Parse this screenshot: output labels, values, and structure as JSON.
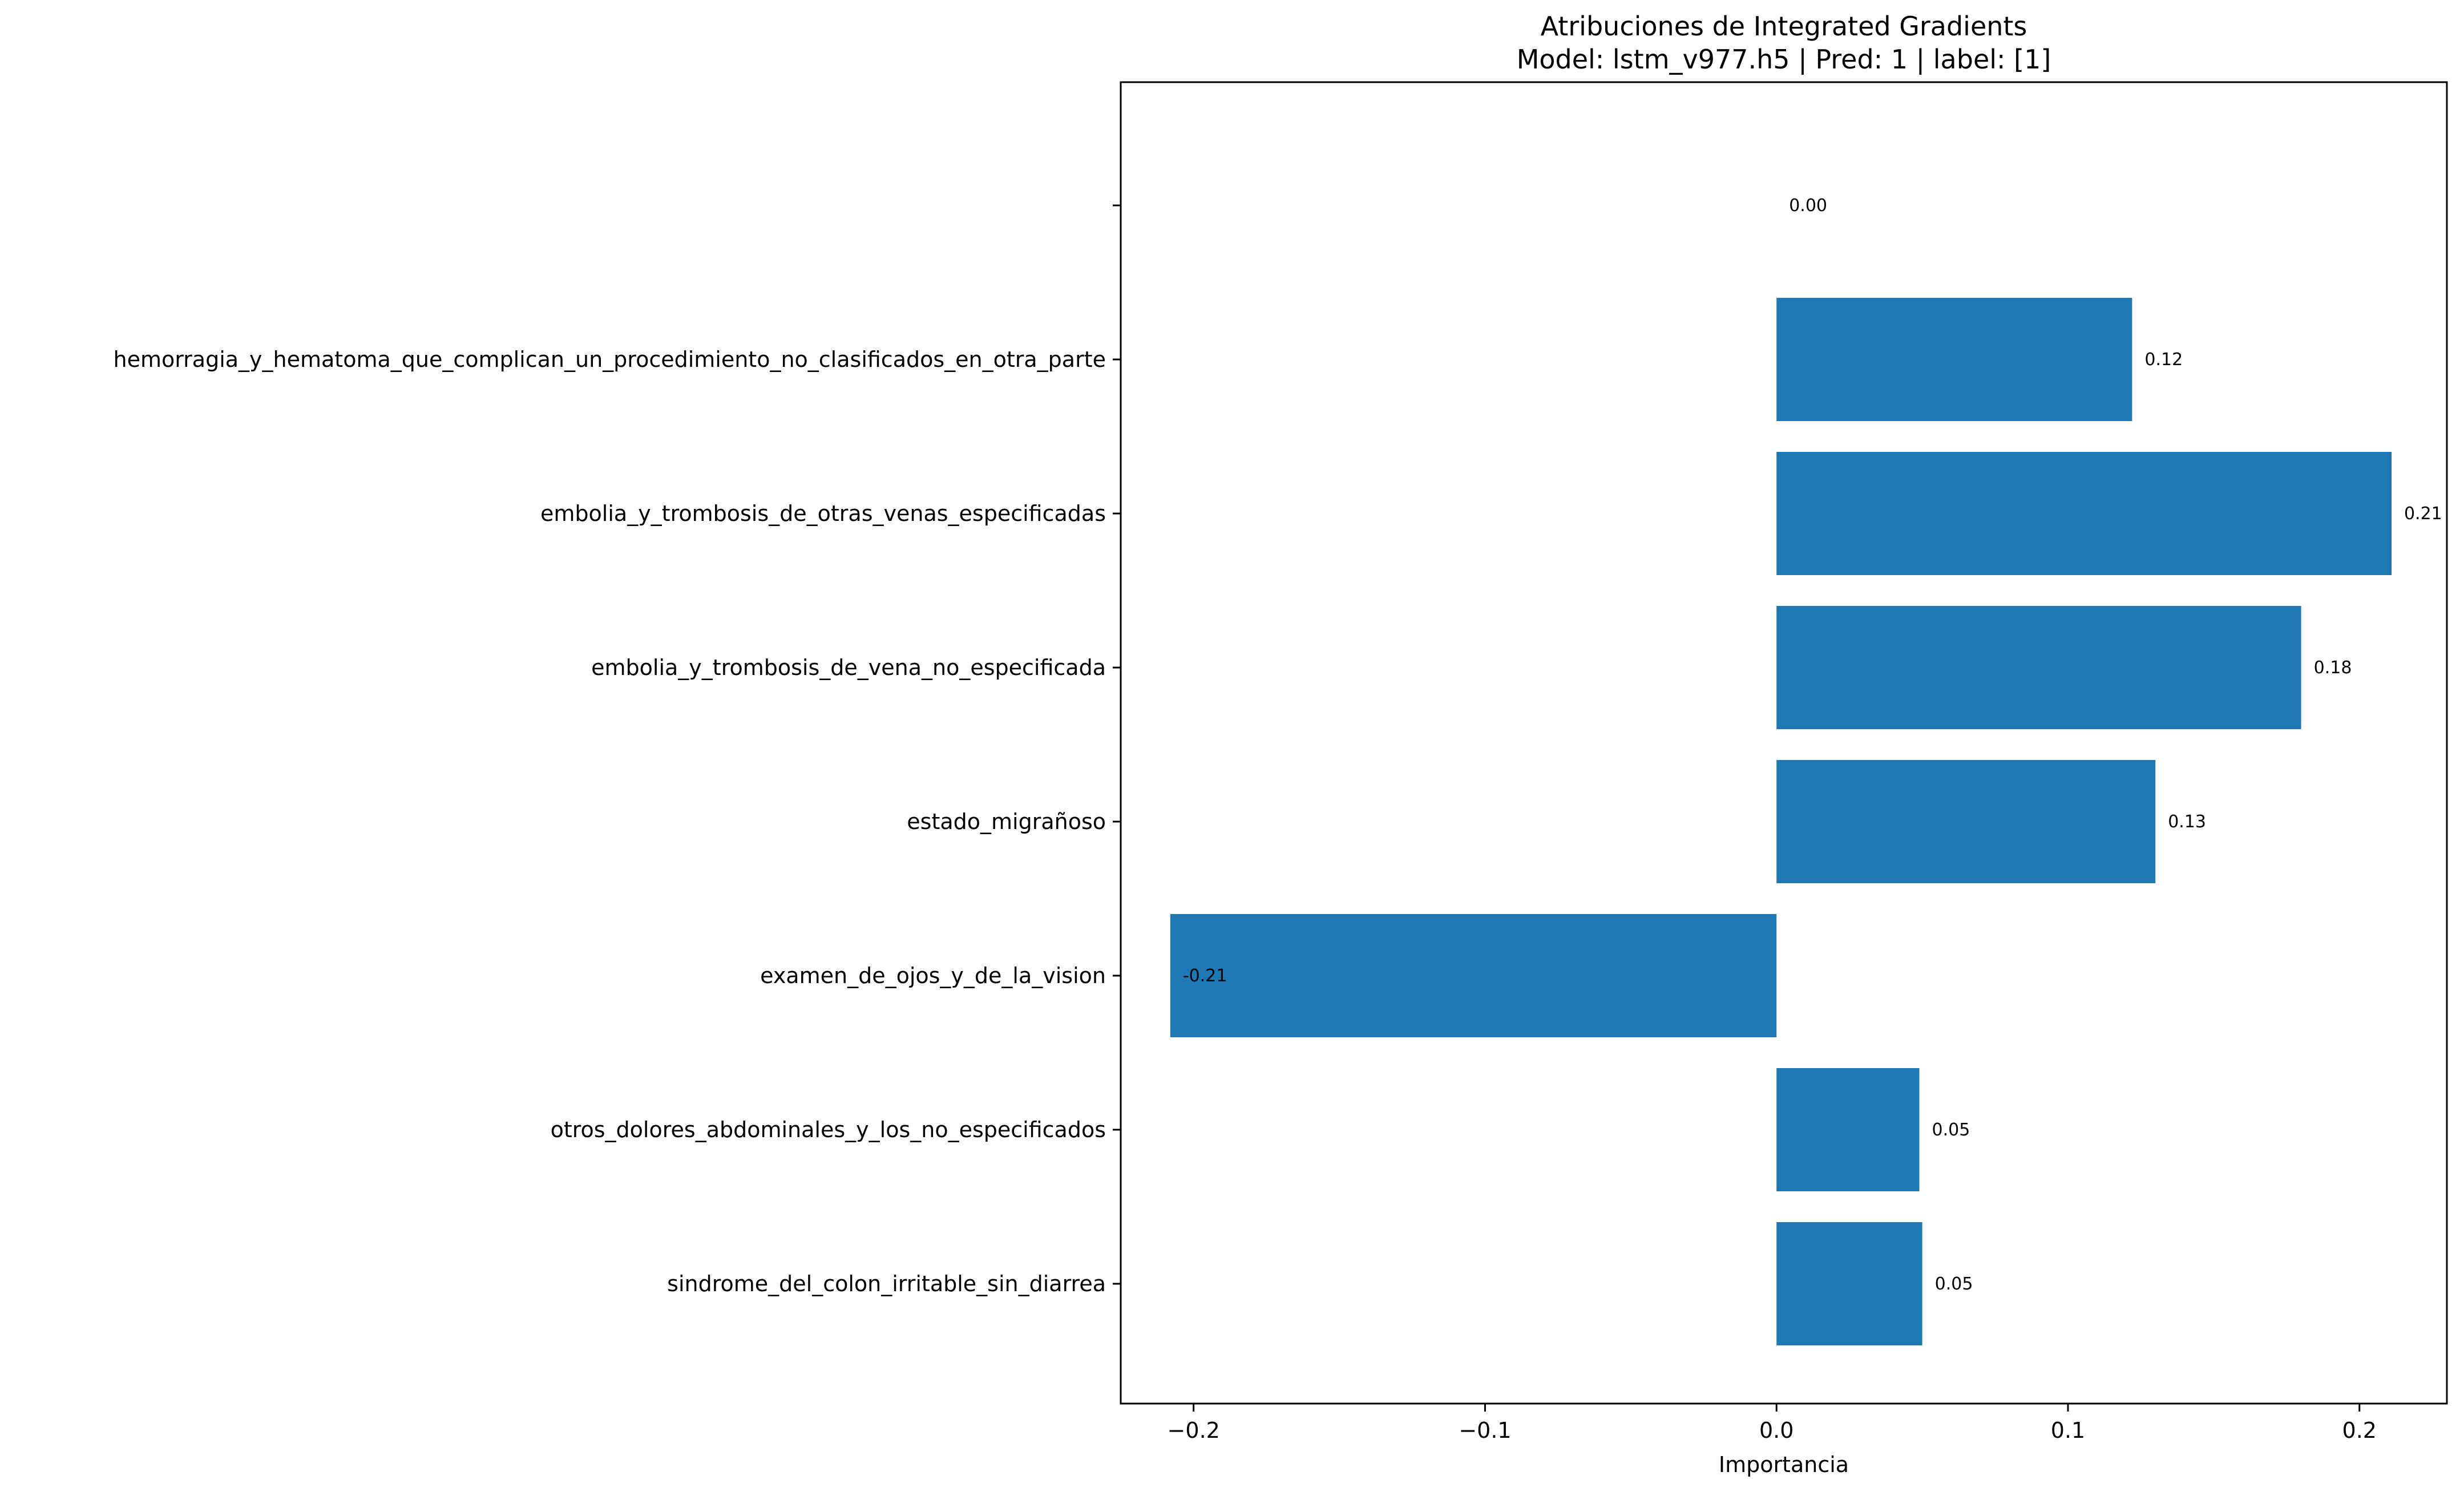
{
  "chart_data": {
    "type": "bar",
    "orientation": "horizontal",
    "title": "Atribuciones de Integrated Gradients",
    "subtitle": "Model: lstm_v977.h5 | Pred: 1 | label: [1]",
    "xlabel": "Importancia",
    "ylabel": "",
    "xlim": [
      -0.225,
      0.23
    ],
    "xticks": [
      {
        "value": -0.2,
        "label": "−0.2"
      },
      {
        "value": -0.1,
        "label": "−0.1"
      },
      {
        "value": 0.0,
        "label": "0.0"
      },
      {
        "value": 0.1,
        "label": "0.1"
      },
      {
        "value": 0.2,
        "label": "0.2"
      }
    ],
    "bar_color": "#1f77b4",
    "grid": false,
    "categories": [
      "",
      "hemorragia_y_hematoma_que_complican_un_procedimiento_no_clasificados_en_otra_parte",
      "embolia_y_trombosis_de_otras_venas_especificadas",
      "embolia_y_trombosis_de_vena_no_especificada",
      "estado_migrañoso",
      "examen_de_ojos_y_de_la_vision",
      "otros_dolores_abdominales_y_los_no_especificados",
      "sindrome_del_colon_irritable_sin_diarrea"
    ],
    "values": [
      0.0,
      0.122,
      0.211,
      0.18,
      0.13,
      -0.208,
      0.049,
      0.05
    ],
    "value_labels": [
      "0.00",
      "0.12",
      "0.21",
      "0.18",
      "0.13",
      "-0.21",
      "0.05",
      "0.05"
    ]
  }
}
